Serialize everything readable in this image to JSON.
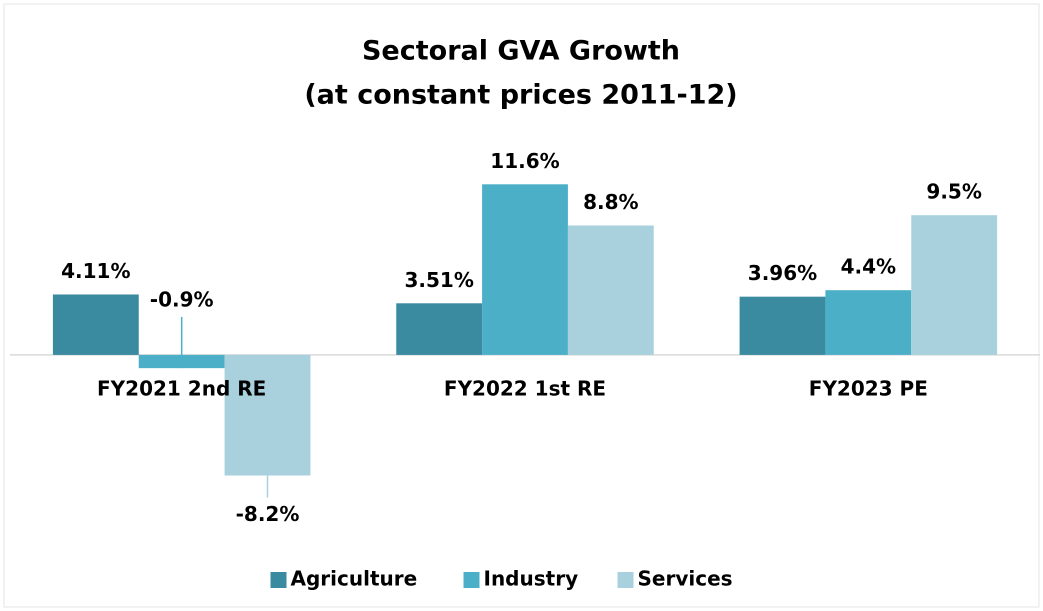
{
  "chart_data": {
    "type": "bar",
    "title": "Sectoral GVA Growth",
    "subtitle": "(at constant prices 2011-12)",
    "categories": [
      "FY2021 2nd RE",
      "FY2022 1st RE",
      "FY2023 PE"
    ],
    "series": [
      {
        "name": "Agriculture",
        "color": "#3a8ba0",
        "values": [
          4.11,
          3.51,
          3.96
        ],
        "value_labels": [
          "4.11%",
          "3.51%",
          "3.96%"
        ]
      },
      {
        "name": "Industry",
        "color": "#4bafc8",
        "values": [
          -0.9,
          11.6,
          4.4
        ],
        "value_labels": [
          "-0.9%",
          "11.6%",
          "4.4%"
        ]
      },
      {
        "name": "Services",
        "color": "#a8d1dd",
        "values": [
          -8.2,
          8.8,
          9.5
        ],
        "value_labels": [
          "-8.2%",
          "8.8%",
          "9.5%"
        ]
      }
    ],
    "ylim": [
      -10,
      14
    ],
    "legend": "bottom"
  }
}
